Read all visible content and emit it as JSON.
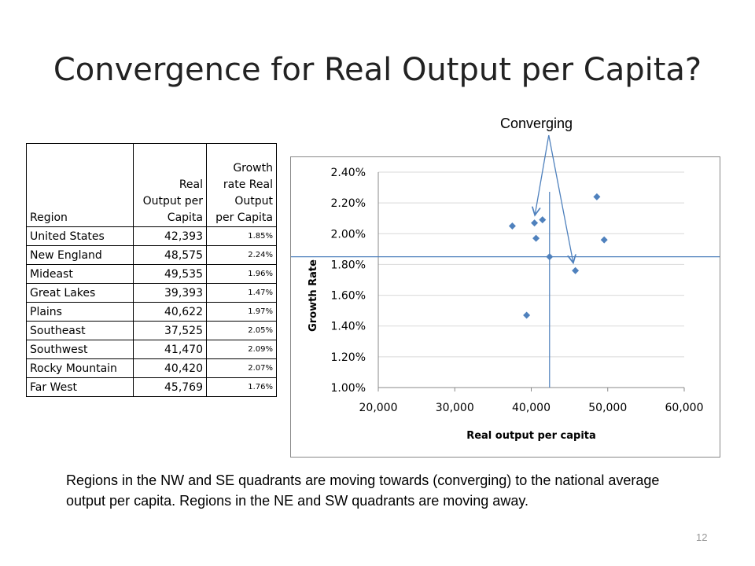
{
  "title": "Convergence for Real Output per Capita?",
  "table": {
    "headers": [
      "Region",
      "Real Output per Capita",
      "Growth rate Real Output per Capita"
    ],
    "header_lines": [
      [
        "Region"
      ],
      [
        "Real",
        "Output per",
        "Capita"
      ],
      [
        "Growth",
        "rate Real",
        "Output",
        "per Capita"
      ]
    ],
    "rows": [
      [
        "United States",
        "42,393",
        "1.85%"
      ],
      [
        "New England",
        "48,575",
        "2.24%"
      ],
      [
        "Mideast",
        "49,535",
        "1.96%"
      ],
      [
        "Great Lakes",
        "39,393",
        "1.47%"
      ],
      [
        "Plains",
        "40,622",
        "1.97%"
      ],
      [
        "Southeast",
        "37,525",
        "2.05%"
      ],
      [
        "Southwest",
        "41,470",
        "2.09%"
      ],
      [
        "Rocky Mountain",
        "40,420",
        "2.07%"
      ],
      [
        "Far West",
        "45,769",
        "1.76%"
      ]
    ]
  },
  "annotation": "Converging",
  "caption": "Regions in the NW and SE quadrants are moving towards (converging) to the national average output per capita.   Regions in the NE and SW quadrants are moving away.",
  "page_number": "12",
  "colors": {
    "marker": "#4f81bd",
    "reference_line": "#4f81bd",
    "grid": "#d9d9d9"
  },
  "chart_data": {
    "type": "scatter",
    "xlabel": "Real output per capita",
    "ylabel": "Growth Rate",
    "xlim": [
      20000,
      60000
    ],
    "ylim": [
      1.0,
      2.4
    ],
    "xticks": [
      20000,
      30000,
      40000,
      50000,
      60000
    ],
    "xtick_labels": [
      "20,000",
      "30,000",
      "40,000",
      "50,000",
      "60,000"
    ],
    "yticks": [
      1.0,
      1.2,
      1.4,
      1.6,
      1.8,
      2.0,
      2.2,
      2.4
    ],
    "ytick_labels": [
      "1.00%",
      "1.20%",
      "1.40%",
      "1.60%",
      "1.80%",
      "2.00%",
      "2.20%",
      "2.40%"
    ],
    "grid": "horizontal",
    "points": [
      {
        "region": "United States",
        "x": 42393,
        "y": 1.85
      },
      {
        "region": "New England",
        "x": 48575,
        "y": 2.24
      },
      {
        "region": "Mideast",
        "x": 49535,
        "y": 1.96
      },
      {
        "region": "Great Lakes",
        "x": 39393,
        "y": 1.47
      },
      {
        "region": "Plains",
        "x": 40622,
        "y": 1.97
      },
      {
        "region": "Southeast",
        "x": 37525,
        "y": 2.05
      },
      {
        "region": "Southwest",
        "x": 41470,
        "y": 2.09
      },
      {
        "region": "Rocky Mountain",
        "x": 40420,
        "y": 2.07
      },
      {
        "region": "Far West",
        "x": 45769,
        "y": 1.76
      }
    ],
    "reference_lines": {
      "x": 42393,
      "y": 1.85
    },
    "annotation_arrows_to": [
      "Rocky Mountain",
      "Far West"
    ]
  }
}
